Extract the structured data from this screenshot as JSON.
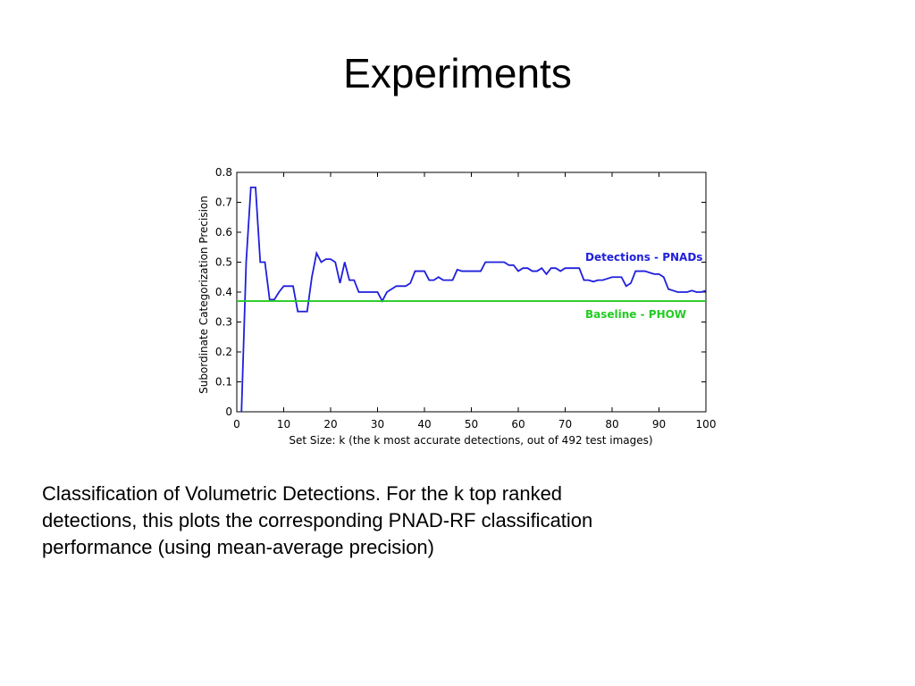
{
  "slide_title": "Experiments",
  "chart_data": {
    "type": "line",
    "ylabel": "Subordinate Categorization Precision",
    "xlabel": "Set Size: k (the k most accurate detections, out of 492 test images)",
    "xlim": [
      0,
      100
    ],
    "xticks": [
      0,
      10,
      20,
      30,
      40,
      50,
      60,
      70,
      80,
      90,
      100
    ],
    "ylim": [
      0,
      0.8
    ],
    "yticks": [
      0,
      0.1,
      0.2,
      0.3,
      0.4,
      0.5,
      0.6,
      0.7,
      0.8
    ],
    "grid": false,
    "series": [
      {
        "name": "Detections - PNADs",
        "color": "#1f1fdc",
        "x": [
          1,
          2,
          3,
          4,
          5,
          6,
          7,
          8,
          9,
          10,
          11,
          12,
          13,
          14,
          15,
          16,
          17,
          18,
          19,
          20,
          21,
          22,
          23,
          24,
          25,
          26,
          27,
          28,
          29,
          30,
          31,
          32,
          33,
          34,
          35,
          36,
          37,
          38,
          39,
          40,
          41,
          42,
          43,
          44,
          45,
          46,
          47,
          48,
          49,
          50,
          51,
          52,
          53,
          54,
          55,
          56,
          57,
          58,
          59,
          60,
          61,
          62,
          63,
          64,
          65,
          66,
          67,
          68,
          69,
          70,
          71,
          72,
          73,
          74,
          75,
          76,
          77,
          78,
          79,
          80,
          81,
          82,
          83,
          84,
          85,
          86,
          87,
          88,
          89,
          90,
          91,
          92,
          93,
          94,
          95,
          96,
          97,
          98,
          99,
          100
        ],
        "values": [
          0,
          0.5,
          0.75,
          0.75,
          0.5,
          0.5,
          0.375,
          0.375,
          0.4,
          0.42,
          0.42,
          0.42,
          0.335,
          0.335,
          0.335,
          0.45,
          0.53,
          0.5,
          0.51,
          0.51,
          0.5,
          0.43,
          0.5,
          0.44,
          0.44,
          0.4,
          0.4,
          0.4,
          0.4,
          0.4,
          0.37,
          0.4,
          0.41,
          0.42,
          0.42,
          0.42,
          0.43,
          0.47,
          0.47,
          0.47,
          0.44,
          0.44,
          0.45,
          0.44,
          0.44,
          0.44,
          0.475,
          0.47,
          0.47,
          0.47,
          0.47,
          0.47,
          0.5,
          0.5,
          0.5,
          0.5,
          0.5,
          0.49,
          0.49,
          0.47,
          0.48,
          0.48,
          0.47,
          0.47,
          0.48,
          0.46,
          0.48,
          0.48,
          0.47,
          0.48,
          0.48,
          0.48,
          0.48,
          0.44,
          0.44,
          0.435,
          0.44,
          0.44,
          0.445,
          0.45,
          0.45,
          0.45,
          0.42,
          0.43,
          0.47,
          0.47,
          0.47,
          0.465,
          0.46,
          0.46,
          0.45,
          0.41,
          0.405,
          0.4,
          0.4,
          0.4,
          0.405,
          0.4,
          0.4,
          0.405
        ]
      },
      {
        "name": "Baseline - PHOW",
        "color": "#22cc22",
        "x": [
          0,
          100
        ],
        "values": [
          0.37,
          0.37
        ]
      }
    ]
  },
  "caption": [
    "Classification of Volumetric Detections. For the k top ranked",
    "detections, this plots the corresponding PNAD-RF classification",
    "performance (using mean-average precision)"
  ]
}
